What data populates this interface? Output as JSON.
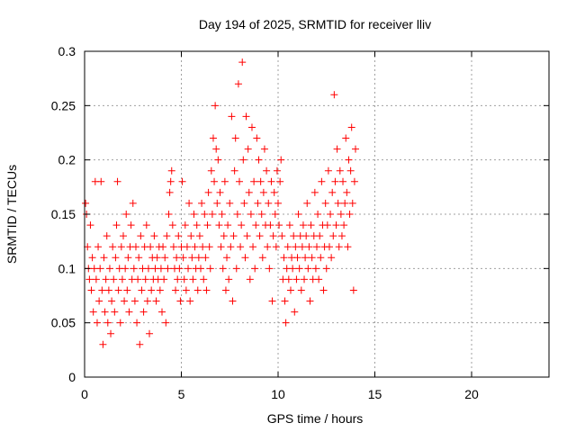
{
  "chart_data": {
    "type": "scatter",
    "title": "Day 194 of 2025, SRMTID for receiver lliv",
    "xlabel": "GPS time / hours",
    "ylabel": "SRMTID / TECUs",
    "xlim": [
      0,
      24
    ],
    "ylim": [
      0,
      0.3
    ],
    "xticks": [
      0,
      5,
      10,
      15,
      20
    ],
    "yticks": [
      0,
      0.05,
      0.1,
      0.15,
      0.2,
      0.25,
      0.3
    ],
    "xtick_labels": [
      "0",
      "5",
      "10",
      "15",
      "20"
    ],
    "ytick_labels": [
      "0",
      "0.05",
      "0.1",
      "0.15",
      "0.2",
      "0.25",
      "0.3"
    ],
    "grid": true,
    "marker": "+",
    "marker_color": "#ff0000",
    "series": [
      {
        "name": "SRMTID",
        "points": [
          [
            0.05,
            0.16
          ],
          [
            0.1,
            0.15
          ],
          [
            0.15,
            0.12
          ],
          [
            0.2,
            0.1
          ],
          [
            0.25,
            0.09
          ],
          [
            0.3,
            0.14
          ],
          [
            0.35,
            0.08
          ],
          [
            0.4,
            0.11
          ],
          [
            0.45,
            0.06
          ],
          [
            0.5,
            0.1
          ],
          [
            0.55,
            0.18
          ],
          [
            0.6,
            0.09
          ],
          [
            0.65,
            0.05
          ],
          [
            0.7,
            0.12
          ],
          [
            0.75,
            0.07
          ],
          [
            0.8,
            0.1
          ],
          [
            0.85,
            0.18
          ],
          [
            0.9,
            0.08
          ],
          [
            0.95,
            0.03
          ],
          [
            1.0,
            0.11
          ],
          [
            1.05,
            0.06
          ],
          [
            1.1,
            0.09
          ],
          [
            1.15,
            0.13
          ],
          [
            1.2,
            0.05
          ],
          [
            1.25,
            0.08
          ],
          [
            1.3,
            0.1
          ],
          [
            1.35,
            0.04
          ],
          [
            1.4,
            0.07
          ],
          [
            1.45,
            0.12
          ],
          [
            1.5,
            0.09
          ],
          [
            1.55,
            0.06
          ],
          [
            1.6,
            0.11
          ],
          [
            1.65,
            0.14
          ],
          [
            1.7,
            0.18
          ],
          [
            1.75,
            0.08
          ],
          [
            1.8,
            0.1
          ],
          [
            1.85,
            0.05
          ],
          [
            1.9,
            0.12
          ],
          [
            1.95,
            0.09
          ],
          [
            2.0,
            0.13
          ],
          [
            2.05,
            0.07
          ],
          [
            2.1,
            0.1
          ],
          [
            2.15,
            0.15
          ],
          [
            2.2,
            0.08
          ],
          [
            2.25,
            0.11
          ],
          [
            2.3,
            0.06
          ],
          [
            2.35,
            0.12
          ],
          [
            2.4,
            0.14
          ],
          [
            2.45,
            0.09
          ],
          [
            2.5,
            0.16
          ],
          [
            2.55,
            0.1
          ],
          [
            2.6,
            0.07
          ],
          [
            2.65,
            0.12
          ],
          [
            2.7,
            0.05
          ],
          [
            2.75,
            0.09
          ],
          [
            2.8,
            0.11
          ],
          [
            2.85,
            0.03
          ],
          [
            2.9,
            0.13
          ],
          [
            2.95,
            0.08
          ],
          [
            3.0,
            0.1
          ],
          [
            3.05,
            0.06
          ],
          [
            3.1,
            0.12
          ],
          [
            3.15,
            0.09
          ],
          [
            3.2,
            0.14
          ],
          [
            3.25,
            0.07
          ],
          [
            3.3,
            0.1
          ],
          [
            3.35,
            0.04
          ],
          [
            3.4,
            0.12
          ],
          [
            3.45,
            0.08
          ],
          [
            3.5,
            0.11
          ],
          [
            3.55,
            0.09
          ],
          [
            3.6,
            0.13
          ],
          [
            3.65,
            0.1
          ],
          [
            3.7,
            0.07
          ],
          [
            3.75,
            0.11
          ],
          [
            3.8,
            0.09
          ],
          [
            3.85,
            0.12
          ],
          [
            3.9,
            0.08
          ],
          [
            3.95,
            0.1
          ],
          [
            4.0,
            0.06
          ],
          [
            4.05,
            0.12
          ],
          [
            4.1,
            0.09
          ],
          [
            4.15,
            0.11
          ],
          [
            4.2,
            0.05
          ],
          [
            4.25,
            0.13
          ],
          [
            4.3,
            0.1
          ],
          [
            4.35,
            0.15
          ],
          [
            4.4,
            0.17
          ],
          [
            4.45,
            0.18
          ],
          [
            4.5,
            0.19
          ],
          [
            4.55,
            0.14
          ],
          [
            4.6,
            0.12
          ],
          [
            4.65,
            0.1
          ],
          [
            4.7,
            0.08
          ],
          [
            4.75,
            0.11
          ],
          [
            4.8,
            0.09
          ],
          [
            4.85,
            0.13
          ],
          [
            4.9,
            0.1
          ],
          [
            4.95,
            0.07
          ],
          [
            5.0,
            0.12
          ],
          [
            5.05,
            0.18
          ],
          [
            5.1,
            0.11
          ],
          [
            5.15,
            0.09
          ],
          [
            5.2,
            0.14
          ],
          [
            5.25,
            0.08
          ],
          [
            5.3,
            0.12
          ],
          [
            5.35,
            0.1
          ],
          [
            5.4,
            0.16
          ],
          [
            5.45,
            0.07
          ],
          [
            5.5,
            0.13
          ],
          [
            5.55,
            0.11
          ],
          [
            5.6,
            0.09
          ],
          [
            5.65,
            0.15
          ],
          [
            5.7,
            0.12
          ],
          [
            5.75,
            0.1
          ],
          [
            5.8,
            0.14
          ],
          [
            5.85,
            0.08
          ],
          [
            5.9,
            0.11
          ],
          [
            5.95,
            0.13
          ],
          [
            6.0,
            0.1
          ],
          [
            6.05,
            0.16
          ],
          [
            6.1,
            0.12
          ],
          [
            6.15,
            0.09
          ],
          [
            6.2,
            0.15
          ],
          [
            6.25,
            0.11
          ],
          [
            6.3,
            0.08
          ],
          [
            6.35,
            0.14
          ],
          [
            6.4,
            0.17
          ],
          [
            6.45,
            0.12
          ],
          [
            6.5,
            0.1
          ],
          [
            6.55,
            0.19
          ],
          [
            6.6,
            0.15
          ],
          [
            6.65,
            0.22
          ],
          [
            6.7,
            0.18
          ],
          [
            6.75,
            0.25
          ],
          [
            6.8,
            0.21
          ],
          [
            6.85,
            0.16
          ],
          [
            6.9,
            0.2
          ],
          [
            6.95,
            0.14
          ],
          [
            7.0,
            0.17
          ],
          [
            7.05,
            0.12
          ],
          [
            7.1,
            0.15
          ],
          [
            7.15,
            0.1
          ],
          [
            7.2,
            0.13
          ],
          [
            7.25,
            0.18
          ],
          [
            7.3,
            0.08
          ],
          [
            7.35,
            0.11
          ],
          [
            7.4,
            0.14
          ],
          [
            7.45,
            0.09
          ],
          [
            7.5,
            0.16
          ],
          [
            7.55,
            0.12
          ],
          [
            7.6,
            0.24
          ],
          [
            7.65,
            0.07
          ],
          [
            7.7,
            0.13
          ],
          [
            7.75,
            0.19
          ],
          [
            7.8,
            0.22
          ],
          [
            7.85,
            0.1
          ],
          [
            7.9,
            0.15
          ],
          [
            7.95,
            0.27
          ],
          [
            8.0,
            0.18
          ],
          [
            8.05,
            0.12
          ],
          [
            8.1,
            0.14
          ],
          [
            8.15,
            0.29
          ],
          [
            8.2,
            0.2
          ],
          [
            8.25,
            0.16
          ],
          [
            8.3,
            0.11
          ],
          [
            8.35,
            0.24
          ],
          [
            8.4,
            0.13
          ],
          [
            8.45,
            0.21
          ],
          [
            8.5,
            0.17
          ],
          [
            8.55,
            0.09
          ],
          [
            8.6,
            0.15
          ],
          [
            8.65,
            0.23
          ],
          [
            8.7,
            0.12
          ],
          [
            8.75,
            0.18
          ],
          [
            8.8,
            0.1
          ],
          [
            8.85,
            0.14
          ],
          [
            8.9,
            0.22
          ],
          [
            8.95,
            0.16
          ],
          [
            9.0,
            0.2
          ],
          [
            9.05,
            0.13
          ],
          [
            9.1,
            0.18
          ],
          [
            9.15,
            0.15
          ],
          [
            9.2,
            0.11
          ],
          [
            9.25,
            0.17
          ],
          [
            9.3,
            0.21
          ],
          [
            9.35,
            0.14
          ],
          [
            9.4,
            0.19
          ],
          [
            9.45,
            0.12
          ],
          [
            9.5,
            0.16
          ],
          [
            9.55,
            0.1
          ],
          [
            9.6,
            0.14
          ],
          [
            9.65,
            0.18
          ],
          [
            9.7,
            0.07
          ],
          [
            9.75,
            0.13
          ],
          [
            9.8,
            0.17
          ],
          [
            9.85,
            0.15
          ],
          [
            9.9,
            0.12
          ],
          [
            9.95,
            0.19
          ],
          [
            10.0,
            0.16
          ],
          [
            10.05,
            0.14
          ],
          [
            10.1,
            0.18
          ],
          [
            10.15,
            0.2
          ],
          [
            10.2,
            0.13
          ],
          [
            10.25,
            0.09
          ],
          [
            10.3,
            0.11
          ],
          [
            10.35,
            0.07
          ],
          [
            10.4,
            0.05
          ],
          [
            10.45,
            0.1
          ],
          [
            10.5,
            0.12
          ],
          [
            10.55,
            0.09
          ],
          [
            10.6,
            0.14
          ],
          [
            10.65,
            0.08
          ],
          [
            10.7,
            0.11
          ],
          [
            10.75,
            0.1
          ],
          [
            10.8,
            0.13
          ],
          [
            10.85,
            0.06
          ],
          [
            10.9,
            0.12
          ],
          [
            10.95,
            0.09
          ],
          [
            11.0,
            0.11
          ],
          [
            11.05,
            0.15
          ],
          [
            11.1,
            0.1
          ],
          [
            11.15,
            0.13
          ],
          [
            11.2,
            0.08
          ],
          [
            11.25,
            0.12
          ],
          [
            11.3,
            0.14
          ],
          [
            11.35,
            0.09
          ],
          [
            11.4,
            0.11
          ],
          [
            11.45,
            0.13
          ],
          [
            11.5,
            0.16
          ],
          [
            11.55,
            0.1
          ],
          [
            11.6,
            0.12
          ],
          [
            11.65,
            0.07
          ],
          [
            11.7,
            0.14
          ],
          [
            11.75,
            0.11
          ],
          [
            11.8,
            0.09
          ],
          [
            11.85,
            0.13
          ],
          [
            11.9,
            0.17
          ],
          [
            11.95,
            0.1
          ],
          [
            12.0,
            0.12
          ],
          [
            12.05,
            0.15
          ],
          [
            12.1,
            0.09
          ],
          [
            12.15,
            0.13
          ],
          [
            12.2,
            0.11
          ],
          [
            12.25,
            0.18
          ],
          [
            12.3,
            0.14
          ],
          [
            12.35,
            0.08
          ],
          [
            12.4,
            0.12
          ],
          [
            12.45,
            0.16
          ],
          [
            12.5,
            0.1
          ],
          [
            12.55,
            0.14
          ],
          [
            12.6,
            0.19
          ],
          [
            12.65,
            0.12
          ],
          [
            12.7,
            0.15
          ],
          [
            12.75,
            0.11
          ],
          [
            12.8,
            0.17
          ],
          [
            12.85,
            0.13
          ],
          [
            12.9,
            0.26
          ],
          [
            12.95,
            0.18
          ],
          [
            13.0,
            0.14
          ],
          [
            13.05,
            0.21
          ],
          [
            13.1,
            0.16
          ],
          [
            13.15,
            0.12
          ],
          [
            13.2,
            0.19
          ],
          [
            13.25,
            0.15
          ],
          [
            13.3,
            0.13
          ],
          [
            13.35,
            0.18
          ],
          [
            13.4,
            0.14
          ],
          [
            13.45,
            0.16
          ],
          [
            13.5,
            0.22
          ],
          [
            13.55,
            0.17
          ],
          [
            13.6,
            0.12
          ],
          [
            13.65,
            0.2
          ],
          [
            13.7,
            0.15
          ],
          [
            13.75,
            0.19
          ],
          [
            13.8,
            0.23
          ],
          [
            13.85,
            0.16
          ],
          [
            13.9,
            0.08
          ],
          [
            13.95,
            0.18
          ],
          [
            14.0,
            0.21
          ]
        ]
      }
    ]
  }
}
